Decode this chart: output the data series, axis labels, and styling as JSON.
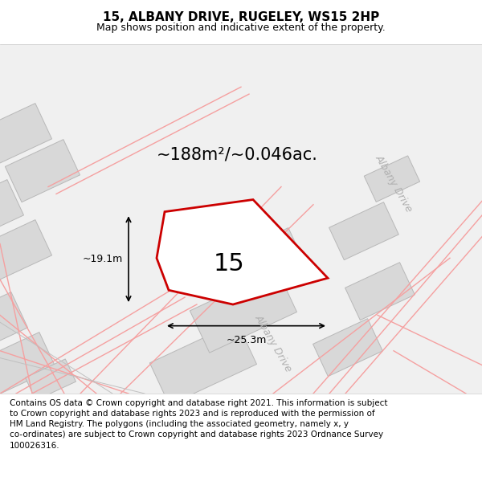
{
  "title": "15, ALBANY DRIVE, RUGELEY, WS15 2HP",
  "subtitle": "Map shows position and indicative extent of the property.",
  "footer_line1": "Contains OS data © Crown copyright and database right 2021. This information is subject",
  "footer_line2": "to Crown copyright and database rights 2023 and is reproduced with the permission of",
  "footer_line3": "HM Land Registry. The polygons (including the associated geometry, namely x, y",
  "footer_line4": "co-ordinates) are subject to Crown copyright and database rights 2023 Ordnance Survey",
  "footer_line5": "100026316.",
  "bg_color": "#f5f5f5",
  "map_bg": "#f0f0f0",
  "plot_color": "#ff0000",
  "building_color": "#d8d8d8",
  "road_line_color": "#f5a0a0",
  "area_text": "~188m²/~0.046ac.",
  "label_text": "15",
  "dim_h": "~19.1m",
  "dim_w": "~25.3m",
  "road_label": "Albany Drive",
  "title_fontsize": 11,
  "subtitle_fontsize": 9,
  "footer_fontsize": 7.5
}
